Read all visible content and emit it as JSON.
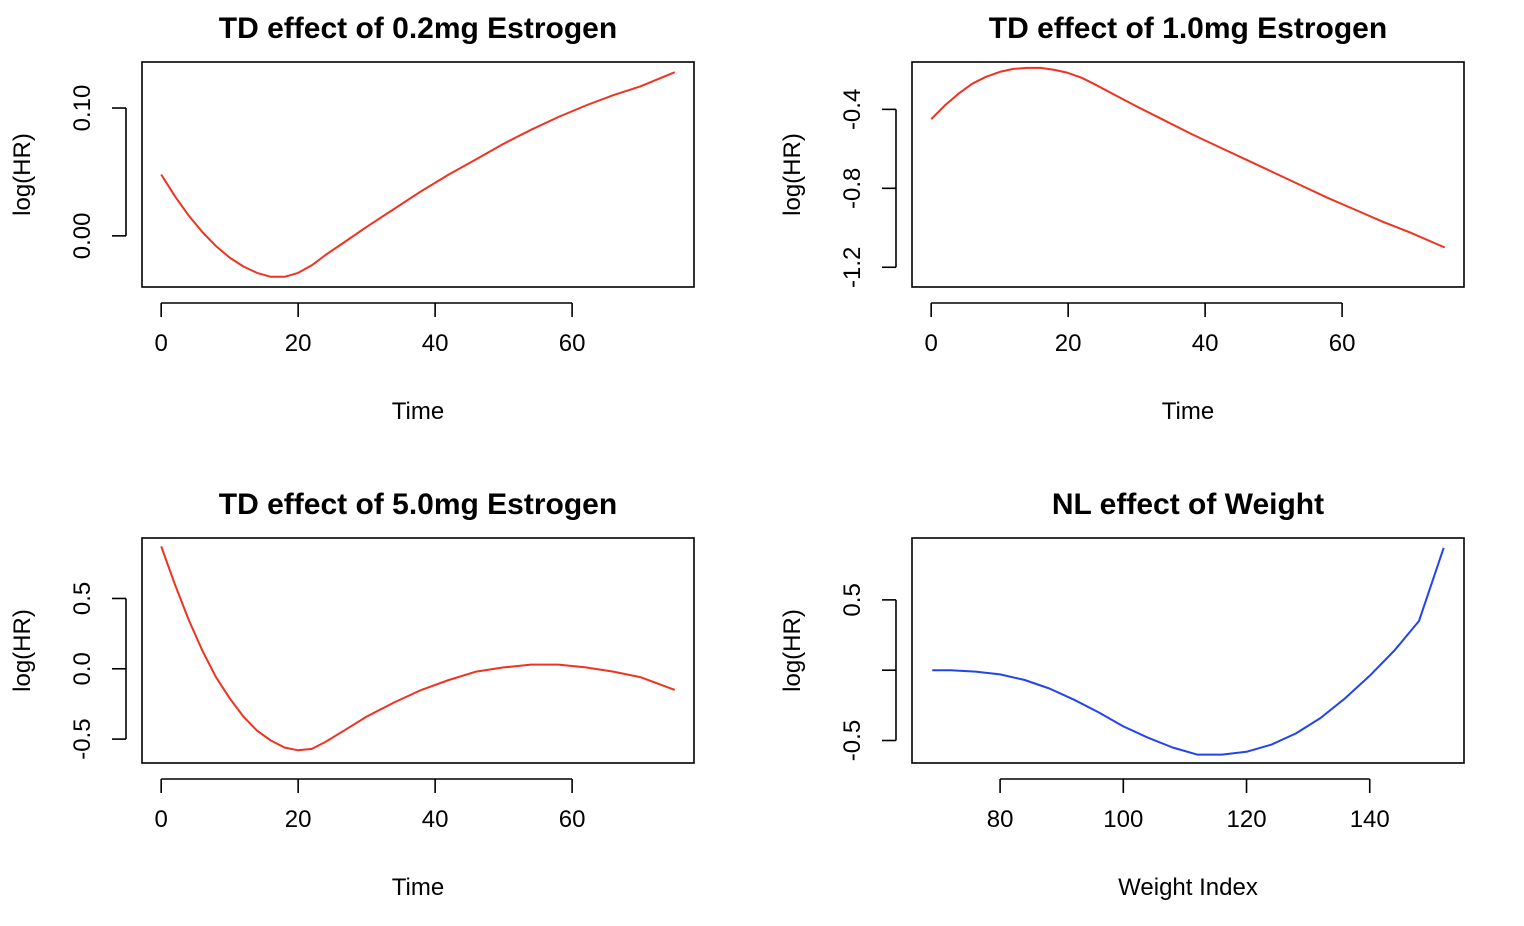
{
  "chart_data": [
    {
      "type": "line",
      "title": "TD effect of 0.2mg Estrogen",
      "xlabel": "Time",
      "ylabel": "log(HR)",
      "xlim": [
        -2.8,
        77.8
      ],
      "ylim": [
        -0.04,
        0.136
      ],
      "xticks": [
        0,
        20,
        40,
        60
      ],
      "yticks": [
        0.0,
        0.1
      ],
      "ytick_labels": [
        "0.00",
        "0.10"
      ],
      "color": "#ee3322",
      "series": [
        {
          "name": "0.2mg",
          "x": [
            0,
            2,
            4,
            6,
            8,
            10,
            12,
            14,
            16,
            18,
            20,
            22,
            24,
            27,
            30,
            34,
            38,
            42,
            46,
            50,
            54,
            58,
            62,
            66,
            70,
            75
          ],
          "y": [
            0.048,
            0.031,
            0.016,
            0.003,
            -0.008,
            -0.017,
            -0.024,
            -0.029,
            -0.032,
            -0.032,
            -0.029,
            -0.023,
            -0.015,
            -0.004,
            0.007,
            0.021,
            0.035,
            0.048,
            0.06,
            0.072,
            0.083,
            0.093,
            0.102,
            0.11,
            0.117,
            0.128
          ]
        }
      ]
    },
    {
      "type": "line",
      "title": "TD effect of 1.0mg Estrogen",
      "xlabel": "Time",
      "ylabel": "log(HR)",
      "xlim": [
        -2.8,
        77.8
      ],
      "ylim": [
        -1.3,
        -0.16
      ],
      "xticks": [
        0,
        20,
        40,
        60
      ],
      "yticks": [
        -1.2,
        -0.8,
        -0.4
      ],
      "ytick_labels": [
        "-1.2",
        "-0.8",
        "-0.4"
      ],
      "color": "#ee3322",
      "series": [
        {
          "name": "1.0mg",
          "x": [
            0,
            2,
            4,
            6,
            8,
            10,
            12,
            14,
            16,
            18,
            20,
            22,
            24,
            27,
            30,
            34,
            38,
            42,
            46,
            50,
            54,
            58,
            62,
            66,
            70,
            75
          ],
          "y": [
            -0.45,
            -0.38,
            -0.32,
            -0.27,
            -0.235,
            -0.21,
            -0.195,
            -0.19,
            -0.19,
            -0.2,
            -0.215,
            -0.24,
            -0.275,
            -0.33,
            -0.385,
            -0.455,
            -0.525,
            -0.59,
            -0.655,
            -0.72,
            -0.785,
            -0.85,
            -0.91,
            -0.97,
            -1.025,
            -1.1
          ]
        }
      ]
    },
    {
      "type": "line",
      "title": "TD effect of 5.0mg Estrogen",
      "xlabel": "Time",
      "ylabel": "log(HR)",
      "xlim": [
        -2.8,
        77.8
      ],
      "ylim": [
        -0.67,
        0.93
      ],
      "xticks": [
        0,
        20,
        40,
        60
      ],
      "yticks": [
        -0.5,
        0.0,
        0.5
      ],
      "ytick_labels": [
        "-0.5",
        "0.0",
        "0.5"
      ],
      "color": "#ee3322",
      "series": [
        {
          "name": "5.0mg",
          "x": [
            0,
            2,
            4,
            6,
            8,
            10,
            12,
            14,
            16,
            18,
            20,
            22,
            24,
            27,
            30,
            34,
            38,
            42,
            46,
            50,
            54,
            58,
            62,
            66,
            70,
            75
          ],
          "y": [
            0.87,
            0.6,
            0.35,
            0.13,
            -0.06,
            -0.21,
            -0.34,
            -0.44,
            -0.51,
            -0.56,
            -0.58,
            -0.57,
            -0.52,
            -0.43,
            -0.34,
            -0.24,
            -0.15,
            -0.08,
            -0.02,
            0.01,
            0.03,
            0.03,
            0.01,
            -0.02,
            -0.06,
            -0.15
          ]
        }
      ]
    },
    {
      "type": "line",
      "title": "NL effect of Weight",
      "xlabel": "Weight Index",
      "ylabel": "log(HR)",
      "xlim": [
        65.7,
        155.3
      ],
      "ylim": [
        -0.66,
        0.94
      ],
      "xticks": [
        80,
        100,
        120,
        140
      ],
      "yticks": [
        -0.5,
        0.0,
        0.5
      ],
      "ytick_labels": [
        "-0.5",
        "",
        "0.5"
      ],
      "color": "#2244ee",
      "series": [
        {
          "name": "Weight",
          "x": [
            69,
            72,
            76,
            80,
            84,
            88,
            92,
            96,
            100,
            104,
            108,
            112,
            116,
            120,
            124,
            128,
            132,
            136,
            140,
            144,
            148,
            152
          ],
          "y": [
            0.0,
            0.0,
            -0.01,
            -0.03,
            -0.07,
            -0.13,
            -0.21,
            -0.3,
            -0.4,
            -0.48,
            -0.55,
            -0.6,
            -0.6,
            -0.58,
            -0.53,
            -0.45,
            -0.34,
            -0.2,
            -0.04,
            0.14,
            0.35,
            0.87
          ]
        }
      ]
    }
  ]
}
